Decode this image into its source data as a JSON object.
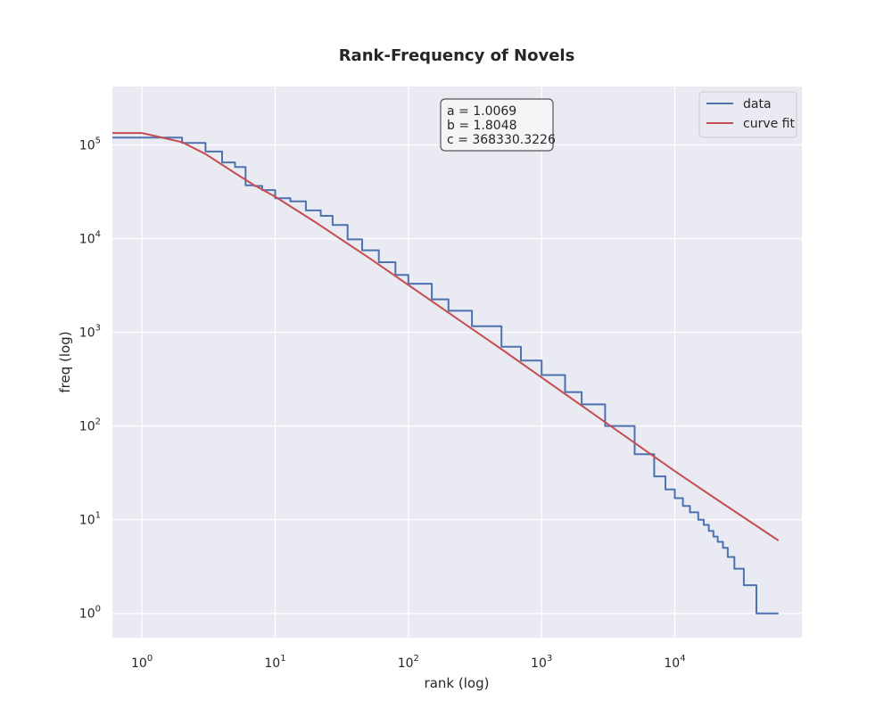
{
  "chart_data": {
    "type": "line",
    "title": "Rank-Frequency of Novels",
    "xlabel": "rank (log)",
    "ylabel": "freq (log)",
    "xscale": "log",
    "yscale": "log",
    "xlim": [
      0.6,
      90000
    ],
    "ylim": [
      0.55,
      420000
    ],
    "grid": true,
    "legend_position": "top-right",
    "x_ticks": [
      {
        "value": 1,
        "base": "10",
        "exp": "0"
      },
      {
        "value": 10,
        "base": "10",
        "exp": "1"
      },
      {
        "value": 100,
        "base": "10",
        "exp": "2"
      },
      {
        "value": 1000,
        "base": "10",
        "exp": "3"
      },
      {
        "value": 10000,
        "base": "10",
        "exp": "4"
      }
    ],
    "y_ticks": [
      {
        "value": 1,
        "base": "10",
        "exp": "0"
      },
      {
        "value": 10,
        "base": "10",
        "exp": "1"
      },
      {
        "value": 100,
        "base": "10",
        "exp": "2"
      },
      {
        "value": 1000,
        "base": "10",
        "exp": "3"
      },
      {
        "value": 10000,
        "base": "10",
        "exp": "4"
      },
      {
        "value": 100000,
        "base": "10",
        "exp": "5"
      }
    ],
    "annotation": [
      "a = 1.0069",
      "b = 1.8048",
      "c = 368330.3226"
    ],
    "series": [
      {
        "name": "data",
        "color": "#4c72b0",
        "step": true,
        "points": [
          [
            0.6,
            120000
          ],
          [
            1,
            120000
          ],
          [
            2,
            105000
          ],
          [
            3,
            85000
          ],
          [
            4,
            65000
          ],
          [
            5,
            58000
          ],
          [
            6,
            37000
          ],
          [
            7,
            36500
          ],
          [
            8,
            33000
          ],
          [
            10,
            27000
          ],
          [
            13,
            25000
          ],
          [
            17,
            20000
          ],
          [
            22,
            17500
          ],
          [
            27,
            14000
          ],
          [
            35,
            9800
          ],
          [
            45,
            7500
          ],
          [
            60,
            5600
          ],
          [
            80,
            4100
          ],
          [
            100,
            3300
          ],
          [
            150,
            2250
          ],
          [
            200,
            1700
          ],
          [
            300,
            1160
          ],
          [
            500,
            700
          ],
          [
            700,
            500
          ],
          [
            1000,
            350
          ],
          [
            1500,
            230
          ],
          [
            2000,
            170
          ],
          [
            3000,
            100
          ],
          [
            5000,
            50
          ],
          [
            7000,
            29
          ],
          [
            8500,
            21
          ],
          [
            10000,
            17
          ],
          [
            11500,
            14
          ],
          [
            13000,
            12
          ],
          [
            15000,
            10
          ],
          [
            16500,
            8.8
          ],
          [
            18000,
            7.6
          ],
          [
            19500,
            6.6
          ],
          [
            21000,
            5.8
          ],
          [
            23000,
            5
          ],
          [
            25000,
            4
          ],
          [
            28000,
            3
          ],
          [
            33000,
            2
          ],
          [
            41000,
            1
          ],
          [
            60000,
            1
          ]
        ]
      },
      {
        "name": "curve fit",
        "color": "#c44e52",
        "step": false,
        "fit_params": {
          "a": 1.0069,
          "b": 1.8048,
          "c": 368330.3226
        },
        "points": [
          [
            0.6,
            134000
          ],
          [
            1,
            134000
          ],
          [
            2,
            107000
          ],
          [
            3,
            80000
          ],
          [
            5,
            50000
          ],
          [
            7,
            37000
          ],
          [
            10,
            28000
          ],
          [
            20,
            15000
          ],
          [
            50,
            6300
          ],
          [
            100,
            3200
          ],
          [
            200,
            1620
          ],
          [
            500,
            660
          ],
          [
            1000,
            330
          ],
          [
            2000,
            165
          ],
          [
            5000,
            66
          ],
          [
            10000,
            33
          ],
          [
            20000,
            17
          ],
          [
            60000,
            6
          ]
        ]
      }
    ]
  }
}
